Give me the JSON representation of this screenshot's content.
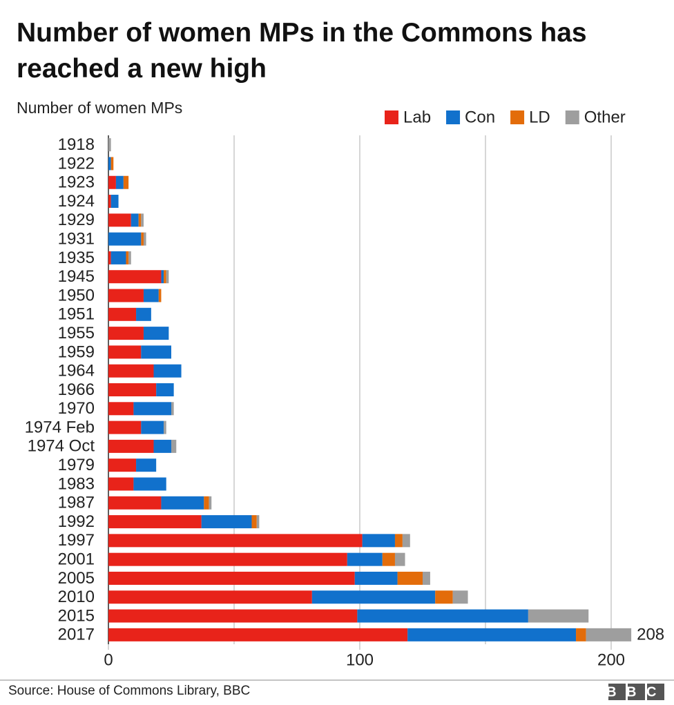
{
  "chart_data": {
    "type": "stacked-barh",
    "title": "Number of women MPs in the Commons has reached a new high",
    "subtitle": "Number of women MPs",
    "source": "Source: House of Commons Library, BBC",
    "logo": "BBC",
    "categories": [
      "1918",
      "1922",
      "1923",
      "1924",
      "1929",
      "1931",
      "1935",
      "1945",
      "1950",
      "1951",
      "1955",
      "1959",
      "1964",
      "1966",
      "1970",
      "1974 Feb",
      "1974 Oct",
      "1979",
      "1983",
      "1987",
      "1992",
      "1997",
      "2001",
      "2005",
      "2010",
      "2015",
      "2017"
    ],
    "series": [
      {
        "name": "Lab",
        "color": "#e8231a",
        "values": [
          0,
          0,
          3,
          1,
          9,
          0,
          1,
          21,
          14,
          11,
          14,
          13,
          18,
          19,
          10,
          13,
          18,
          11,
          10,
          21,
          37,
          101,
          95,
          98,
          81,
          99,
          119
        ]
      },
      {
        "name": "Con",
        "color": "#1171cc",
        "values": [
          0,
          1,
          3,
          3,
          3,
          13,
          6,
          1,
          6,
          6,
          10,
          12,
          11,
          7,
          15,
          9,
          7,
          8,
          13,
          17,
          20,
          13,
          14,
          17,
          49,
          68,
          67
        ]
      },
      {
        "name": "LD",
        "color": "#e36c0a",
        "values": [
          0,
          1,
          2,
          0,
          1,
          1,
          1,
          1,
          1,
          0,
          0,
          0,
          0,
          0,
          0,
          0,
          0,
          0,
          0,
          2,
          2,
          3,
          5,
          10,
          7,
          0,
          4
        ]
      },
      {
        "name": "Other",
        "color": "#9e9e9e",
        "values": [
          1,
          0,
          0,
          0,
          1,
          1,
          1,
          1,
          0,
          0,
          0,
          0,
          0,
          0,
          1,
          1,
          2,
          0,
          0,
          1,
          1,
          3,
          4,
          3,
          6,
          24,
          18
        ]
      }
    ],
    "annotations": [
      {
        "category": "2017",
        "value": 208,
        "text": "208"
      }
    ],
    "xlim": [
      0,
      200
    ],
    "xticks": [
      0,
      100,
      200
    ],
    "minor_xticks": [
      50,
      150
    ],
    "grid": true,
    "legend": "top-right"
  }
}
